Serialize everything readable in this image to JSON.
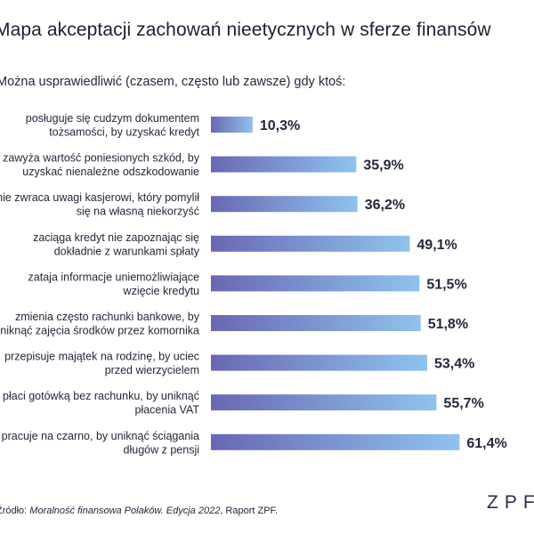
{
  "title": "Mapa akceptacji zachowań nieetycznych w sferze finansów",
  "subtitle": "Można usprawiedliwić (czasem, często lub zawsze) gdy ktoś:",
  "source": {
    "prefix": "Źródło: ",
    "italic": "Moralność finansowa Polaków. Edycja 2022",
    "suffix": ", Raport ZPF."
  },
  "logo_text": "ZPF",
  "colors": {
    "bar_start": "#6a67b3",
    "bar_end": "#8fc3ee",
    "text": "#23283a"
  },
  "chart_data": {
    "type": "bar",
    "orientation": "horizontal",
    "categories": [
      [
        "posługuje się cudzym dokumentem",
        "tożsamości, by uzyskać kredyt"
      ],
      [
        "zawyża wartość poniesionych szkód, by",
        "uzyskać nienależne odszkodowanie"
      ],
      [
        "nie zwraca uwagi kasjerowi, który pomylił",
        "się na własną niekorzyść"
      ],
      [
        "zaciąga kredyt nie zapoznając się",
        "dokładnie z warunkami spłaty"
      ],
      [
        "zataja informacje uniemożliwiające",
        "wzięcie kredytu"
      ],
      [
        "zmienia często rachunki bankowe, by",
        "uniknąć zajęcia środków przez komornika"
      ],
      [
        "przepisuje majątek na rodzinę, by uciec",
        "przed wierzycielem"
      ],
      [
        "płaci gotówką bez rachunku, by uniknąć",
        "płacenia VAT"
      ],
      [
        "pracuje na czarno, by uniknąć ściągania",
        "długów z pensji"
      ]
    ],
    "values": [
      10.3,
      35.9,
      36.2,
      49.1,
      51.5,
      51.8,
      53.4,
      55.7,
      61.4
    ],
    "value_labels": [
      "10,3%",
      "35,9%",
      "36,2%",
      "49,1%",
      "51,5%",
      "51,8%",
      "53,4%",
      "55,7%",
      "61,4%"
    ],
    "xlim": [
      0,
      100
    ],
    "grid": false
  }
}
